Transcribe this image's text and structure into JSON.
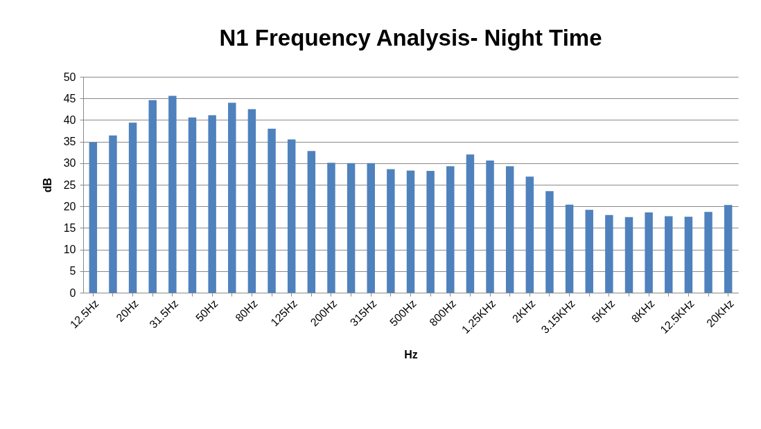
{
  "chart_data": {
    "type": "bar",
    "title": "N1 Frequency Analysis- Night Time",
    "xlabel": "Hz",
    "ylabel": "dB",
    "categories": [
      "12.5Hz",
      null,
      "20Hz",
      null,
      "31.5Hz",
      null,
      "50Hz",
      null,
      "80Hz",
      null,
      "125Hz",
      null,
      "200Hz",
      null,
      "315Hz",
      null,
      "500Hz",
      null,
      "800Hz",
      null,
      "1.25KHz",
      null,
      "2KHz",
      null,
      "3.15KHz",
      null,
      "5KHz",
      null,
      "8KHz",
      null,
      "12.5KHz",
      null,
      "20KHz"
    ],
    "values": [
      34.8,
      36.4,
      39.4,
      44.6,
      45.6,
      40.6,
      41.1,
      44.0,
      42.5,
      38.0,
      35.5,
      32.8,
      30.1,
      30.0,
      30.0,
      28.6,
      28.3,
      28.2,
      29.3,
      32.0,
      30.6,
      29.3,
      26.9,
      23.5,
      20.4,
      19.2,
      18.0,
      17.5,
      18.6,
      17.7,
      17.6,
      18.7,
      20.3
    ],
    "color": "#4f81bd",
    "ylim": [
      0,
      50
    ],
    "yticks": [
      0,
      5,
      10,
      15,
      20,
      25,
      30,
      35,
      40,
      45,
      50
    ],
    "grid": "y"
  }
}
